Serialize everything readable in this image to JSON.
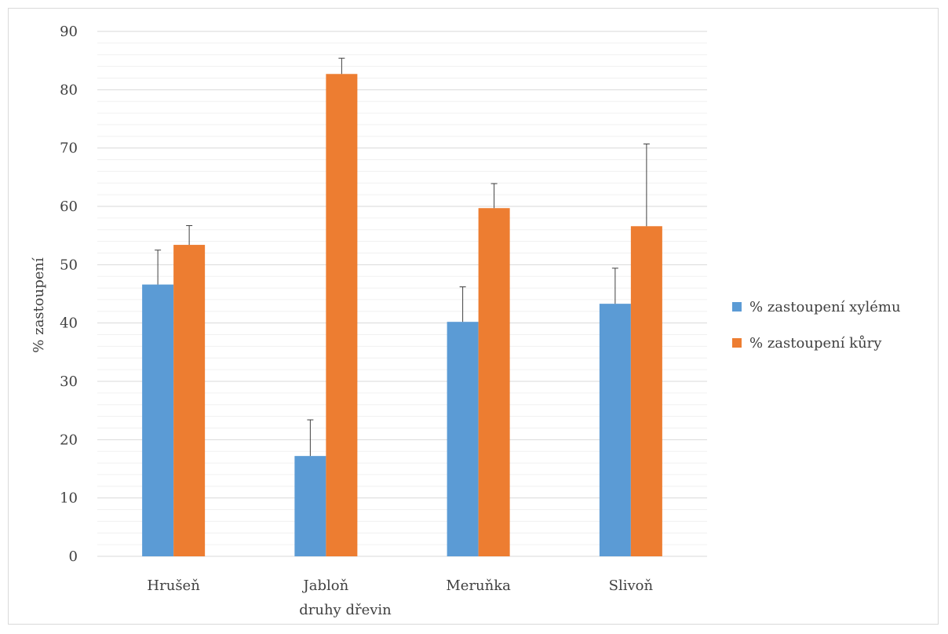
{
  "chart_data": {
    "type": "bar",
    "title": "",
    "xlabel": "druhy dřevin",
    "ylabel": "% zastoupení",
    "categories": [
      "Hrušeň",
      "Jabloň",
      "Meruňka",
      "Slivoň"
    ],
    "ylim": [
      0,
      90
    ],
    "y_ticks": [
      0,
      10,
      20,
      30,
      40,
      50,
      60,
      70,
      80,
      90
    ],
    "minor_grid_step": 2,
    "grid": true,
    "legend_position": "right",
    "series": [
      {
        "name": "% zastoupení xylému",
        "color": "#5b9bd5",
        "values": [
          46.6,
          17.2,
          40.2,
          43.3
        ],
        "errors": [
          5.9,
          6.2,
          6.0,
          6.1
        ]
      },
      {
        "name": "% zastoupení kůry",
        "color": "#ed7d31",
        "values": [
          53.4,
          82.7,
          59.7,
          56.6
        ],
        "errors": [
          3.3,
          2.7,
          4.2,
          14.1
        ]
      }
    ]
  }
}
